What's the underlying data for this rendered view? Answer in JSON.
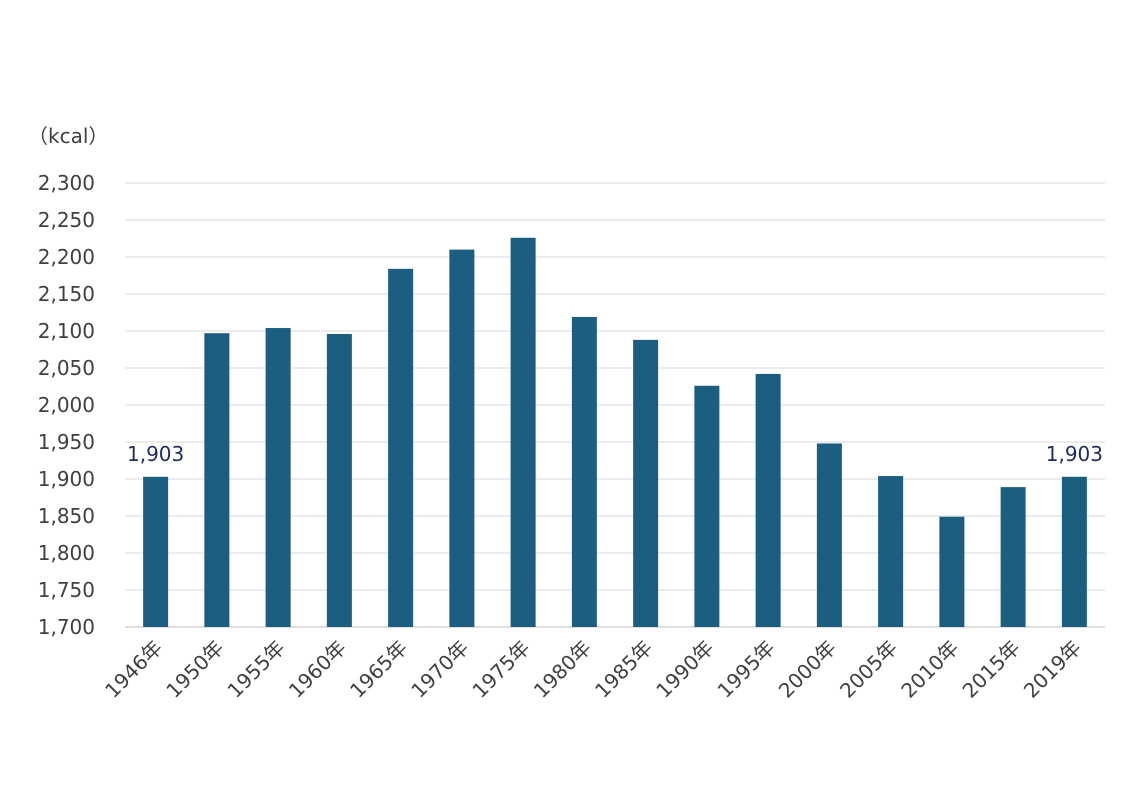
{
  "chart_data": {
    "type": "bar",
    "unit_label": "（kcal）",
    "categories": [
      "1946年",
      "1950年",
      "1955年",
      "1960年",
      "1965年",
      "1970年",
      "1975年",
      "1980年",
      "1985年",
      "1990年",
      "1995年",
      "2000年",
      "2005年",
      "2010年",
      "2015年",
      "2019年"
    ],
    "values": [
      1903,
      2097,
      2104,
      2096,
      2184,
      2210,
      2226,
      2119,
      2088,
      2026,
      2042,
      1948,
      1904,
      1849,
      1889,
      1903
    ],
    "data_labels": [
      {
        "index": 0,
        "text": "1,903"
      },
      {
        "index": 15,
        "text": "1,903"
      }
    ],
    "y_ticks": [
      "1,700",
      "1,750",
      "1,800",
      "1,850",
      "1,900",
      "1,950",
      "2,000",
      "2,050",
      "2,100",
      "2,150",
      "2,200",
      "2,250",
      "2,300"
    ],
    "ylim": [
      1700,
      2300
    ],
    "grid": true,
    "legend": "none",
    "bar_color": "#1b5e7f"
  }
}
